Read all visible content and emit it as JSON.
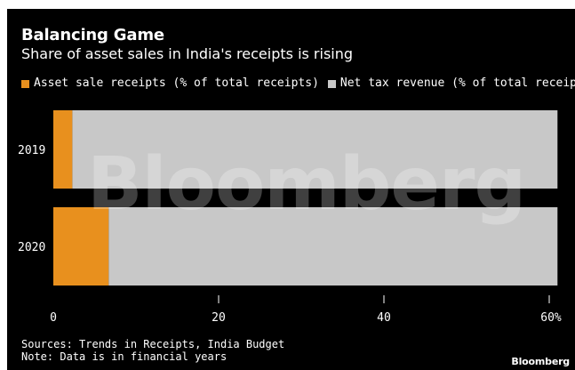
{
  "title": "Balancing Game",
  "subtitle": "Share of asset sales in India's receipts is rising",
  "legend": [
    {
      "label": "Asset sale receipts (% of total receipts)",
      "color": "#e8901e"
    },
    {
      "label": "Net tax revenue (% of total receipts)",
      "color": "#c8c8c8"
    }
  ],
  "watermark": "Bloomberg",
  "footer": {
    "sources": "Sources: Trends in Receipts, India Budget",
    "note": "Note: Data is in financial years",
    "brand": "Bloomberg"
  },
  "chart_data": {
    "type": "bar",
    "orientation": "horizontal",
    "stacked": true,
    "categories": [
      "2019",
      "2020"
    ],
    "series": [
      {
        "name": "Asset sale receipts (% of total receipts)",
        "color": "#e8901e",
        "values": [
          2.3,
          6.7
        ]
      },
      {
        "name": "Net tax revenue (% of total receipts)",
        "color": "#c8c8c8",
        "values": [
          58.7,
          54.3
        ]
      }
    ],
    "xlim": [
      0,
      60
    ],
    "xticks": [
      0,
      20,
      40,
      60
    ],
    "xtick_labels": [
      "0",
      "20",
      "40",
      "60%"
    ],
    "xlabel": "",
    "ylabel": "",
    "grid": false,
    "legend_position": "top-left"
  }
}
